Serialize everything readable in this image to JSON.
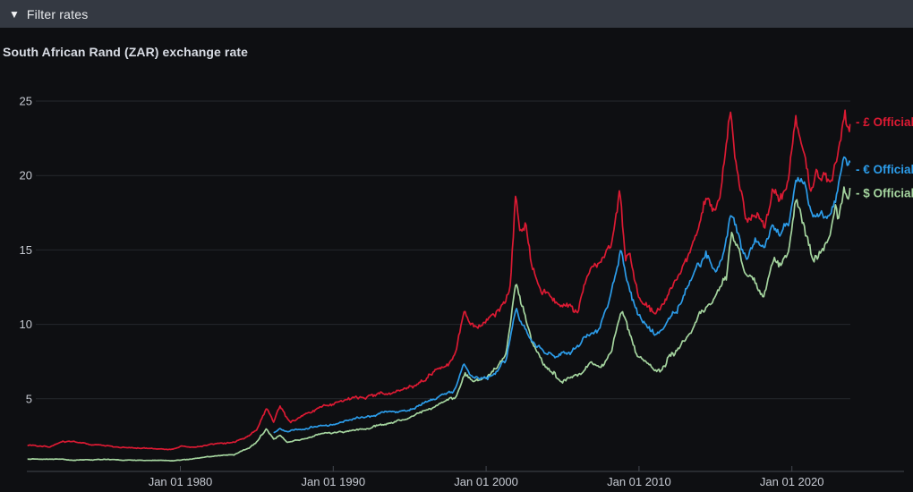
{
  "filter_bar": {
    "label": "Filter rates",
    "icon": "triangle-down"
  },
  "page_title": "South African Rand (ZAR) exchange rate",
  "colors": {
    "background": "#0e0f12",
    "topbar": "#343942",
    "grid": "#25282d",
    "axis": "#43474e",
    "tick_text": "#c6cad2",
    "title_text": "#d9dde5",
    "pound": "#dc1a33",
    "euro": "#2c9ce9",
    "dollar": "#a5d59f"
  },
  "chart_data": {
    "type": "line",
    "title": "South African Rand (ZAR) exchange rate",
    "grid": true,
    "legend_position": "right-of-line-ends",
    "x_axis": {
      "range_years": [
        1970.0,
        2023.8
      ],
      "ticks": [
        {
          "year": 1980,
          "label": "Jan 01 1980"
        },
        {
          "year": 1990,
          "label": "Jan 01 1990"
        },
        {
          "year": 2000,
          "label": "Jan 01 2000"
        },
        {
          "year": 2010,
          "label": "Jan 01 2010"
        },
        {
          "year": 2020,
          "label": "Jan 01 2020"
        }
      ]
    },
    "y_axis": {
      "ticks": [
        5,
        10,
        15,
        20,
        25
      ],
      "range": [
        0,
        25.8
      ]
    },
    "series": [
      {
        "id": "gbp-official",
        "name": "£ Official",
        "legend_label": "- £ Official",
        "color": "#dc1a33",
        "points": [
          [
            1970.0,
            1.85
          ],
          [
            1971.5,
            1.8
          ],
          [
            1972.3,
            2.15
          ],
          [
            1973.0,
            2.1
          ],
          [
            1974.0,
            1.95
          ],
          [
            1975.5,
            1.8
          ],
          [
            1977.0,
            1.72
          ],
          [
            1978.5,
            1.62
          ],
          [
            1979.5,
            1.6
          ],
          [
            1980.0,
            1.82
          ],
          [
            1981.0,
            1.75
          ],
          [
            1982.0,
            1.95
          ],
          [
            1983.5,
            2.1
          ],
          [
            1984.5,
            2.5
          ],
          [
            1985.0,
            2.9
          ],
          [
            1985.65,
            4.35
          ],
          [
            1986.1,
            3.4
          ],
          [
            1986.5,
            4.5
          ],
          [
            1987.2,
            3.35
          ],
          [
            1988.0,
            3.8
          ],
          [
            1989.0,
            4.3
          ],
          [
            1990.0,
            4.55
          ],
          [
            1991.0,
            4.95
          ],
          [
            1992.0,
            5.05
          ],
          [
            1993.0,
            5.3
          ],
          [
            1994.0,
            5.4
          ],
          [
            1995.0,
            5.75
          ],
          [
            1996.0,
            6.3
          ],
          [
            1996.8,
            7.0
          ],
          [
            1997.5,
            7.5
          ],
          [
            1998.0,
            8.2
          ],
          [
            1998.55,
            10.9
          ],
          [
            1999.0,
            10.0
          ],
          [
            1999.6,
            9.9
          ],
          [
            2000.0,
            10.3
          ],
          [
            2000.6,
            10.6
          ],
          [
            2001.2,
            11.3
          ],
          [
            2001.6,
            12.6
          ],
          [
            2001.95,
            18.9
          ],
          [
            2002.2,
            16.2
          ],
          [
            2002.6,
            17.1
          ],
          [
            2003.0,
            14.2
          ],
          [
            2003.6,
            12.7
          ],
          [
            2004.2,
            12.1
          ],
          [
            2004.8,
            11.3
          ],
          [
            2005.5,
            11.3
          ],
          [
            2006.0,
            11.0
          ],
          [
            2006.5,
            12.9
          ],
          [
            2007.0,
            14.0
          ],
          [
            2007.6,
            14.3
          ],
          [
            2008.2,
            15.3
          ],
          [
            2008.75,
            18.8
          ],
          [
            2009.1,
            14.2
          ],
          [
            2009.4,
            15.0
          ],
          [
            2010.0,
            11.9
          ],
          [
            2010.5,
            11.3
          ],
          [
            2011.0,
            10.9
          ],
          [
            2011.6,
            11.4
          ],
          [
            2012.2,
            12.5
          ],
          [
            2013.0,
            14.1
          ],
          [
            2013.8,
            16.2
          ],
          [
            2014.4,
            18.2
          ],
          [
            2015.0,
            17.8
          ],
          [
            2015.4,
            19.3
          ],
          [
            2015.95,
            24.4
          ],
          [
            2016.3,
            21.5
          ],
          [
            2016.6,
            19.5
          ],
          [
            2017.0,
            16.9
          ],
          [
            2017.6,
            17.3
          ],
          [
            2018.2,
            16.4
          ],
          [
            2018.75,
            19.2
          ],
          [
            2019.2,
            18.3
          ],
          [
            2019.7,
            19.0
          ],
          [
            2020.28,
            23.6
          ],
          [
            2020.7,
            21.6
          ],
          [
            2021.2,
            19.2
          ],
          [
            2021.7,
            19.9
          ],
          [
            2022.2,
            20.5
          ],
          [
            2022.6,
            19.6
          ],
          [
            2022.9,
            20.8
          ],
          [
            2023.15,
            22.4
          ],
          [
            2023.45,
            24.5
          ],
          [
            2023.6,
            23.2
          ],
          [
            2023.8,
            23.6
          ]
        ]
      },
      {
        "id": "eur-official",
        "name": "€ Official",
        "legend_label": "- € Official",
        "color": "#2c9ce9",
        "points": [
          [
            1986.1,
            2.75
          ],
          [
            1986.5,
            3.05
          ],
          [
            1987.0,
            2.85
          ],
          [
            1987.5,
            3.0
          ],
          [
            1988.0,
            3.0
          ],
          [
            1989.0,
            3.15
          ],
          [
            1990.0,
            3.3
          ],
          [
            1991.0,
            3.55
          ],
          [
            1992.0,
            3.7
          ],
          [
            1993.0,
            3.95
          ],
          [
            1994.0,
            4.15
          ],
          [
            1995.0,
            4.35
          ],
          [
            1996.0,
            4.8
          ],
          [
            1997.0,
            5.2
          ],
          [
            1998.0,
            5.7
          ],
          [
            1998.55,
            7.3
          ],
          [
            1999.0,
            6.6
          ],
          [
            2000.0,
            6.4
          ],
          [
            2000.7,
            6.8
          ],
          [
            2001.3,
            7.7
          ],
          [
            2001.95,
            11.1
          ],
          [
            2002.4,
            10.0
          ],
          [
            2003.0,
            8.9
          ],
          [
            2003.7,
            8.2
          ],
          [
            2004.5,
            7.9
          ],
          [
            2005.2,
            8.0
          ],
          [
            2006.0,
            8.6
          ],
          [
            2006.6,
            9.3
          ],
          [
            2007.3,
            9.7
          ],
          [
            2008.0,
            11.3
          ],
          [
            2008.8,
            15.0
          ],
          [
            2009.2,
            12.9
          ],
          [
            2009.8,
            11.0
          ],
          [
            2010.4,
            9.9
          ],
          [
            2011.0,
            9.3
          ],
          [
            2011.7,
            10.0
          ],
          [
            2012.3,
            10.7
          ],
          [
            2013.0,
            12.1
          ],
          [
            2013.8,
            14.0
          ],
          [
            2014.4,
            14.9
          ],
          [
            2015.0,
            13.7
          ],
          [
            2015.5,
            14.8
          ],
          [
            2016.0,
            17.3
          ],
          [
            2016.5,
            16.2
          ],
          [
            2017.0,
            14.3
          ],
          [
            2017.7,
            15.3
          ],
          [
            2018.3,
            15.6
          ],
          [
            2018.8,
            16.6
          ],
          [
            2019.3,
            16.0
          ],
          [
            2019.8,
            16.4
          ],
          [
            2020.28,
            19.8
          ],
          [
            2020.8,
            19.4
          ],
          [
            2021.3,
            17.3
          ],
          [
            2021.9,
            17.2
          ],
          [
            2022.4,
            16.8
          ],
          [
            2022.8,
            17.7
          ],
          [
            2023.1,
            19.5
          ],
          [
            2023.45,
            21.0
          ],
          [
            2023.65,
            20.0
          ],
          [
            2023.8,
            20.4
          ]
        ]
      },
      {
        "id": "usd-official",
        "name": "$ Official",
        "legend_label": "- $ Official",
        "color": "#a5d59f",
        "points": [
          [
            1970.0,
            0.95
          ],
          [
            1972.0,
            0.95
          ],
          [
            1973.0,
            0.88
          ],
          [
            1975.0,
            0.92
          ],
          [
            1976.5,
            0.87
          ],
          [
            1978.0,
            0.87
          ],
          [
            1979.5,
            0.84
          ],
          [
            1980.5,
            0.95
          ],
          [
            1981.5,
            1.05
          ],
          [
            1982.5,
            1.2
          ],
          [
            1983.5,
            1.25
          ],
          [
            1984.5,
            1.7
          ],
          [
            1985.0,
            2.1
          ],
          [
            1985.65,
            3.0
          ],
          [
            1986.1,
            2.3
          ],
          [
            1986.5,
            2.55
          ],
          [
            1987.0,
            2.1
          ],
          [
            1988.0,
            2.3
          ],
          [
            1989.0,
            2.6
          ],
          [
            1990.0,
            2.7
          ],
          [
            1991.0,
            2.85
          ],
          [
            1992.0,
            2.95
          ],
          [
            1993.0,
            3.25
          ],
          [
            1994.0,
            3.5
          ],
          [
            1995.0,
            3.65
          ],
          [
            1996.0,
            4.2
          ],
          [
            1997.0,
            4.65
          ],
          [
            1998.0,
            5.1
          ],
          [
            1998.6,
            6.8
          ],
          [
            1999.2,
            6.1
          ],
          [
            2000.0,
            6.3
          ],
          [
            2000.7,
            7.0
          ],
          [
            2001.3,
            8.0
          ],
          [
            2001.95,
            12.9
          ],
          [
            2002.4,
            11.0
          ],
          [
            2003.0,
            8.7
          ],
          [
            2003.7,
            7.4
          ],
          [
            2004.4,
            6.6
          ],
          [
            2005.0,
            6.1
          ],
          [
            2005.6,
            6.5
          ],
          [
            2006.3,
            6.6
          ],
          [
            2006.9,
            7.4
          ],
          [
            2007.5,
            7.0
          ],
          [
            2008.1,
            7.8
          ],
          [
            2008.8,
            10.7
          ],
          [
            2009.2,
            10.0
          ],
          [
            2009.8,
            8.0
          ],
          [
            2010.5,
            7.4
          ],
          [
            2011.4,
            6.8
          ],
          [
            2012.0,
            7.9
          ],
          [
            2012.7,
            8.4
          ],
          [
            2013.4,
            9.3
          ],
          [
            2014.0,
            10.6
          ],
          [
            2014.7,
            11.2
          ],
          [
            2015.3,
            12.2
          ],
          [
            2015.75,
            13.5
          ],
          [
            2016.05,
            16.3
          ],
          [
            2016.5,
            15.2
          ],
          [
            2016.9,
            13.6
          ],
          [
            2017.5,
            13.2
          ],
          [
            2018.15,
            11.9
          ],
          [
            2018.8,
            14.4
          ],
          [
            2019.3,
            14.1
          ],
          [
            2019.8,
            14.7
          ],
          [
            2020.3,
            18.5
          ],
          [
            2020.8,
            16.6
          ],
          [
            2021.4,
            13.9
          ],
          [
            2022.0,
            15.3
          ],
          [
            2022.5,
            16.1
          ],
          [
            2022.85,
            17.9
          ],
          [
            2023.05,
            17.1
          ],
          [
            2023.45,
            19.3
          ],
          [
            2023.65,
            18.4
          ],
          [
            2023.8,
            18.8
          ]
        ]
      }
    ]
  }
}
